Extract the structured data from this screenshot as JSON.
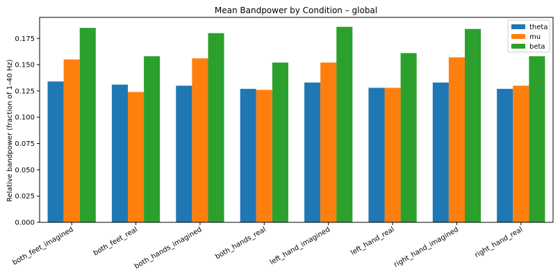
{
  "chart_data": {
    "type": "bar",
    "title": "Mean Bandpower by Condition – global",
    "xlabel": "",
    "ylabel": "Relative bandpower (fraction of 1–40 Hz)",
    "ylim": [
      0,
      0.195
    ],
    "yticks": [
      "0.000",
      "0.025",
      "0.050",
      "0.075",
      "0.100",
      "0.125",
      "0.150",
      "0.175"
    ],
    "grid": false,
    "legend_position": "top-right",
    "categories": [
      "both_feet_imagined",
      "both_feet_real",
      "both_hands_imagined",
      "both_hands_real",
      "left_hand_imagined",
      "left_hand_real",
      "right_hand_imagined",
      "right_hand_real"
    ],
    "series": [
      {
        "name": "theta",
        "color": "#1f77b4",
        "values": [
          0.134,
          0.131,
          0.13,
          0.127,
          0.133,
          0.128,
          0.133,
          0.127
        ]
      },
      {
        "name": "mu",
        "color": "#ff7f0e",
        "values": [
          0.155,
          0.124,
          0.156,
          0.126,
          0.152,
          0.128,
          0.157,
          0.13
        ]
      },
      {
        "name": "beta",
        "color": "#2ca02c",
        "values": [
          0.185,
          0.158,
          0.18,
          0.152,
          0.186,
          0.161,
          0.184,
          0.158
        ]
      }
    ]
  }
}
